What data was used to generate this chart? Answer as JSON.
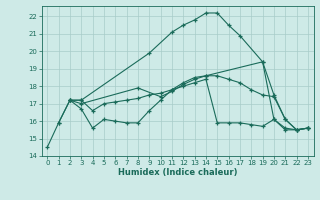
{
  "line1_x": [
    0,
    1,
    2,
    3,
    9,
    11,
    12,
    13,
    14,
    15,
    16,
    17,
    19,
    20,
    21,
    22,
    23
  ],
  "line1_y": [
    14.5,
    15.9,
    17.2,
    17.2,
    19.9,
    21.1,
    21.5,
    21.8,
    22.2,
    22.2,
    21.5,
    20.9,
    19.4,
    16.1,
    15.5,
    15.5,
    15.6
  ],
  "line2_x": [
    2,
    3,
    8,
    10,
    11,
    12,
    13,
    14,
    19,
    20,
    21,
    22,
    23
  ],
  "line2_y": [
    17.2,
    17.0,
    17.9,
    17.4,
    17.7,
    18.1,
    18.4,
    18.6,
    19.4,
    17.5,
    16.1,
    15.5,
    15.6
  ],
  "line3_x": [
    1,
    2,
    3,
    4,
    5,
    6,
    7,
    8,
    9,
    10,
    11,
    12,
    13,
    14,
    15,
    16,
    17,
    18,
    19,
    20,
    21,
    22,
    23
  ],
  "line3_y": [
    15.9,
    17.2,
    16.7,
    15.6,
    16.1,
    16.0,
    15.9,
    15.9,
    16.6,
    17.2,
    17.8,
    18.2,
    18.5,
    18.6,
    18.6,
    18.4,
    18.2,
    17.8,
    17.5,
    17.4,
    16.1,
    15.5,
    15.6
  ],
  "line4_x": [
    2,
    3,
    4,
    5,
    6,
    7,
    8,
    9,
    10,
    11,
    12,
    13,
    14,
    15,
    16,
    17,
    18,
    19,
    20,
    21,
    22,
    23
  ],
  "line4_y": [
    17.2,
    17.2,
    16.6,
    17.0,
    17.1,
    17.2,
    17.3,
    17.5,
    17.6,
    17.8,
    18.0,
    18.2,
    18.4,
    15.9,
    15.9,
    15.9,
    15.8,
    15.7,
    16.1,
    15.6,
    15.5,
    15.6
  ],
  "color": "#1a6b5a",
  "bg_color": "#ceeae7",
  "grid_color": "#a8ccc9",
  "xlabel": "Humidex (Indice chaleur)",
  "xlim": [
    -0.5,
    23.5
  ],
  "ylim": [
    14,
    22.6
  ],
  "yticks": [
    14,
    15,
    16,
    17,
    18,
    19,
    20,
    21,
    22
  ],
  "xticks": [
    0,
    1,
    2,
    3,
    4,
    5,
    6,
    7,
    8,
    9,
    10,
    11,
    12,
    13,
    14,
    15,
    16,
    17,
    18,
    19,
    20,
    21,
    22,
    23
  ]
}
